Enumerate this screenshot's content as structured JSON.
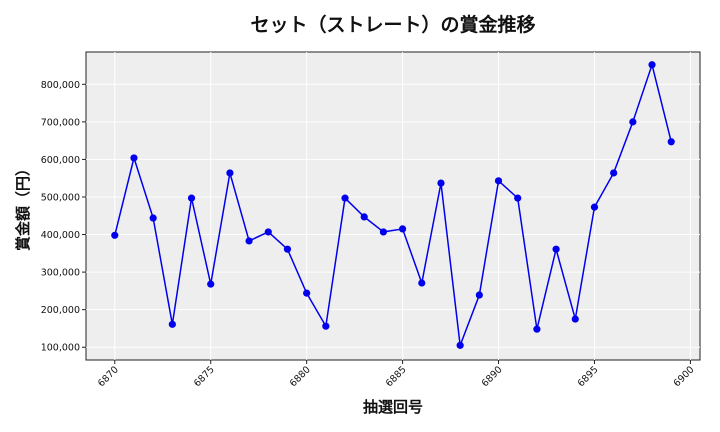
{
  "chart_data": {
    "type": "line",
    "title": "セット（ストレート）の賞金推移",
    "xlabel": "抽選回号",
    "ylabel": "賞金額（円）",
    "x": [
      6870,
      6871,
      6872,
      6873,
      6874,
      6875,
      6876,
      6877,
      6878,
      6879,
      6880,
      6881,
      6882,
      6883,
      6884,
      6885,
      6886,
      6887,
      6888,
      6889,
      6890,
      6891,
      6892,
      6893,
      6894,
      6895,
      6896,
      6897,
      6898,
      6899
    ],
    "series": [
      {
        "name": "セット（ストレート）",
        "color": "#0000ee",
        "marker": "circle",
        "values": [
          398000,
          604000,
          444000,
          161000,
          497000,
          268000,
          564000,
          383000,
          407000,
          361000,
          244000,
          156000,
          497000,
          447000,
          407000,
          415000,
          271000,
          537000,
          105000,
          239000,
          543000,
          497000,
          148000,
          361000,
          175000,
          473000,
          564000,
          700000,
          852000,
          647000
        ]
      }
    ],
    "xticks": [
      6870,
      6875,
      6880,
      6885,
      6890,
      6895,
      6900
    ],
    "yticks": [
      100000,
      200000,
      300000,
      400000,
      500000,
      600000,
      700000,
      800000
    ],
    "ytick_labels": [
      "100,000",
      "200,000",
      "300,000",
      "400,000",
      "500,000",
      "600,000",
      "700,000",
      "800,000"
    ],
    "xlim": [
      6868.5,
      6900.5
    ],
    "ylim": [
      66000,
      886000
    ],
    "grid": true,
    "background": "#eeeeee",
    "legend": null
  }
}
